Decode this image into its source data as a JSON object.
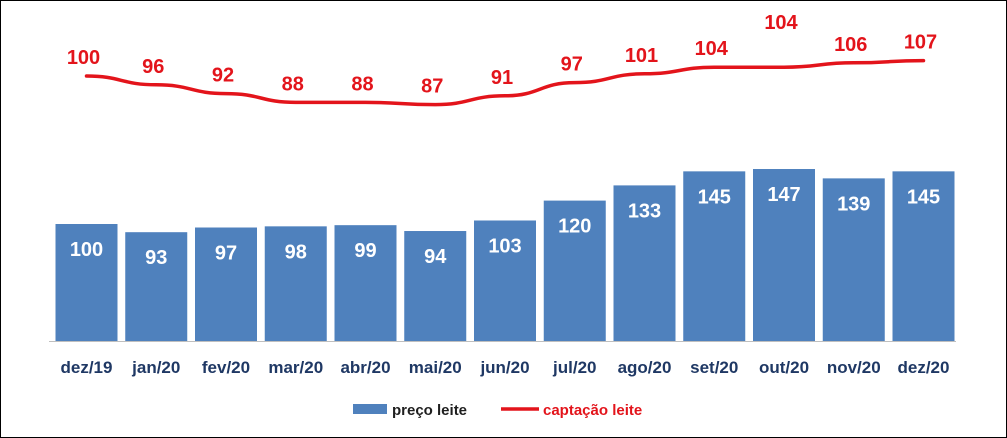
{
  "chart_data": {
    "type": "bar",
    "title": "",
    "xlabel": "",
    "ylabel": "",
    "categories": [
      "dez/19",
      "jan/20",
      "fev/20",
      "mar/20",
      "abr/20",
      "mai/20",
      "jun/20",
      "jul/20",
      "ago/20",
      "set/20",
      "out/20",
      "nov/20",
      "dez/20"
    ],
    "series": [
      {
        "name": "preço leite",
        "type": "bar",
        "color": "#4f81bd",
        "values": [
          100,
          93,
          97,
          98,
          99,
          94,
          103,
          120,
          133,
          145,
          147,
          139,
          145
        ]
      },
      {
        "name": "captação leite",
        "type": "line",
        "color": "#e3141b",
        "values": [
          100,
          96,
          92,
          88,
          88,
          87,
          91,
          97,
          101,
          104,
          104,
          106,
          107
        ]
      }
    ],
    "legend": {
      "placement": "bottom-center",
      "entries": [
        "preço leite",
        "captação leite"
      ]
    },
    "grid": false
  }
}
